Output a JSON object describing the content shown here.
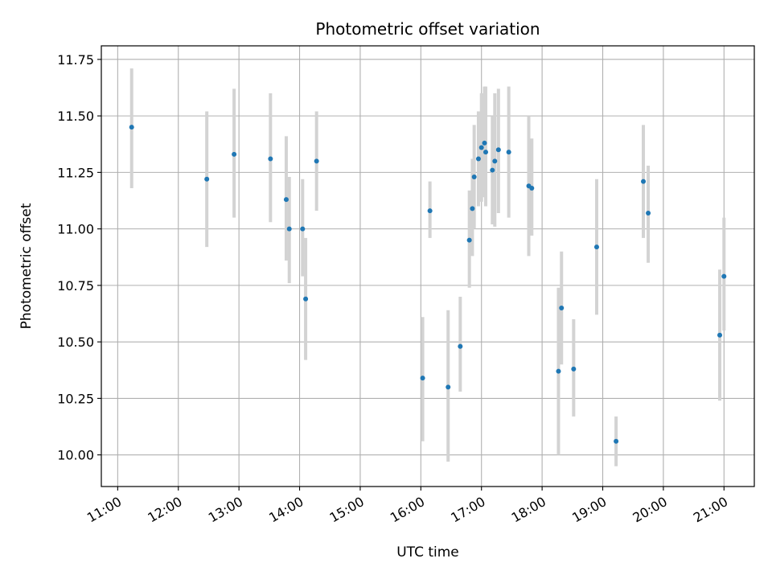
{
  "chart_data": {
    "type": "scatter",
    "title": "Photometric offset variation",
    "xlabel": "UTC time",
    "ylabel": "Photometric offset",
    "x_unit": "hours",
    "xlim": [
      10.73,
      21.5
    ],
    "ylim": [
      9.86,
      11.81
    ],
    "x_ticks": [
      11,
      12,
      13,
      14,
      15,
      16,
      17,
      18,
      19,
      20,
      21
    ],
    "x_tick_labels": [
      "11:00",
      "12:00",
      "13:00",
      "14:00",
      "15:00",
      "16:00",
      "17:00",
      "18:00",
      "19:00",
      "20:00",
      "21:00"
    ],
    "y_ticks": [
      10.0,
      10.25,
      10.5,
      10.75,
      11.0,
      11.25,
      11.5,
      11.75
    ],
    "y_tick_labels": [
      "10.00",
      "10.25",
      "10.50",
      "10.75",
      "11.00",
      "11.25",
      "11.50",
      "11.75"
    ],
    "grid": true,
    "marker_color": "#1f77b4",
    "errorbar_color": "#d3d3d3",
    "points": [
      {
        "x": 11.23,
        "y": 11.45,
        "lo": 11.18,
        "hi": 11.71
      },
      {
        "x": 12.47,
        "y": 11.22,
        "lo": 10.92,
        "hi": 11.52
      },
      {
        "x": 12.92,
        "y": 11.33,
        "lo": 11.05,
        "hi": 11.62
      },
      {
        "x": 13.52,
        "y": 11.31,
        "lo": 11.03,
        "hi": 11.6
      },
      {
        "x": 13.78,
        "y": 11.13,
        "lo": 10.86,
        "hi": 11.41
      },
      {
        "x": 13.83,
        "y": 11.0,
        "lo": 10.76,
        "hi": 11.23
      },
      {
        "x": 14.05,
        "y": 11.0,
        "lo": 10.79,
        "hi": 11.22
      },
      {
        "x": 14.1,
        "y": 10.69,
        "lo": 10.42,
        "hi": 10.96
      },
      {
        "x": 14.28,
        "y": 11.3,
        "lo": 11.08,
        "hi": 11.52
      },
      {
        "x": 16.03,
        "y": 10.34,
        "lo": 10.06,
        "hi": 10.61
      },
      {
        "x": 16.15,
        "y": 11.08,
        "lo": 10.96,
        "hi": 11.21
      },
      {
        "x": 16.45,
        "y": 10.3,
        "lo": 9.97,
        "hi": 10.64
      },
      {
        "x": 16.65,
        "y": 10.48,
        "lo": 10.28,
        "hi": 10.7
      },
      {
        "x": 16.8,
        "y": 10.95,
        "lo": 10.74,
        "hi": 11.17
      },
      {
        "x": 16.85,
        "y": 11.09,
        "lo": 10.88,
        "hi": 11.31
      },
      {
        "x": 16.88,
        "y": 11.23,
        "lo": 11.0,
        "hi": 11.46
      },
      {
        "x": 16.95,
        "y": 11.31,
        "lo": 11.1,
        "hi": 11.52
      },
      {
        "x": 17.0,
        "y": 11.36,
        "lo": 11.12,
        "hi": 11.6
      },
      {
        "x": 17.05,
        "y": 11.38,
        "lo": 11.14,
        "hi": 11.63
      },
      {
        "x": 17.07,
        "y": 11.34,
        "lo": 11.1,
        "hi": 11.63
      },
      {
        "x": 17.18,
        "y": 11.26,
        "lo": 11.02,
        "hi": 11.5
      },
      {
        "x": 17.22,
        "y": 11.3,
        "lo": 11.01,
        "hi": 11.6
      },
      {
        "x": 17.28,
        "y": 11.35,
        "lo": 11.07,
        "hi": 11.62
      },
      {
        "x": 17.45,
        "y": 11.34,
        "lo": 11.05,
        "hi": 11.63
      },
      {
        "x": 17.78,
        "y": 11.19,
        "lo": 10.88,
        "hi": 11.5
      },
      {
        "x": 17.83,
        "y": 11.18,
        "lo": 10.97,
        "hi": 11.4
      },
      {
        "x": 18.27,
        "y": 10.37,
        "lo": 10.0,
        "hi": 10.74
      },
      {
        "x": 18.32,
        "y": 10.65,
        "lo": 10.4,
        "hi": 10.9
      },
      {
        "x": 18.52,
        "y": 10.38,
        "lo": 10.17,
        "hi": 10.6
      },
      {
        "x": 18.9,
        "y": 10.92,
        "lo": 10.62,
        "hi": 11.22
      },
      {
        "x": 19.22,
        "y": 10.06,
        "lo": 9.95,
        "hi": 10.17
      },
      {
        "x": 19.67,
        "y": 11.21,
        "lo": 10.96,
        "hi": 11.46
      },
      {
        "x": 19.75,
        "y": 11.07,
        "lo": 10.85,
        "hi": 11.28
      },
      {
        "x": 20.93,
        "y": 10.53,
        "lo": 10.24,
        "hi": 10.82
      },
      {
        "x": 21.0,
        "y": 10.79,
        "lo": 10.55,
        "hi": 11.05
      }
    ]
  }
}
